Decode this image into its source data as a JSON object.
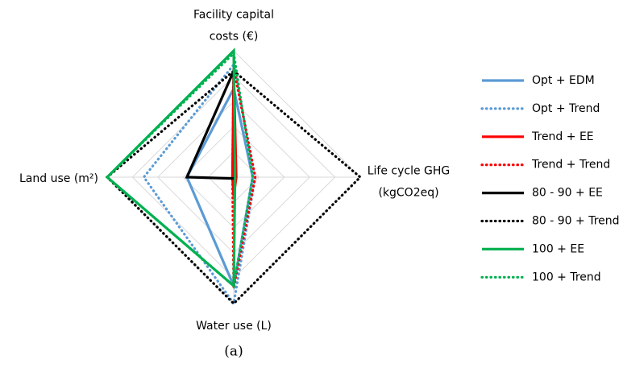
{
  "chart_data": {
    "type": "radar",
    "caption": "(a)",
    "categories": [
      "Facility capital costs (€)",
      "Life cycle GHG (kgCO2eq)",
      "Water use (L)",
      "Land use (m²)"
    ],
    "rlim": [
      0,
      1
    ],
    "rticks": [
      0.2,
      0.4,
      0.6,
      0.8,
      1
    ],
    "grid": true,
    "legend": "right",
    "series": [
      {
        "name": "Opt + EDM",
        "color": "#5b9bd5",
        "style": "solid",
        "values": [
          0.7,
          0.15,
          0.86,
          0.37
        ]
      },
      {
        "name": "Opt + Trend",
        "color": "#5b9bd5",
        "style": "dotted",
        "values": [
          0.89,
          0.17,
          1.0,
          0.71
        ]
      },
      {
        "name": "Trend + EE",
        "color": "#ff0000",
        "style": "solid",
        "values": [
          0.84,
          0.02,
          0.15,
          0.01
        ]
      },
      {
        "name": "Trend + Trend",
        "color": "#ff0000",
        "style": "dotted",
        "values": [
          0.86,
          0.17,
          0.88,
          0.01
        ]
      },
      {
        "name": "80 - 90 + EE",
        "color": "#000000",
        "style": "solid",
        "values": [
          0.84,
          0.01,
          0.01,
          0.37
        ]
      },
      {
        "name": "80 - 90 + Trend",
        "color": "#000000",
        "style": "dotted",
        "values": [
          0.84,
          1.0,
          1.0,
          1.0
        ]
      },
      {
        "name": "100 + EE",
        "color": "#00b050",
        "style": "solid",
        "values": [
          1.0,
          0.01,
          0.86,
          1.0
        ]
      },
      {
        "name": "100 + Trend",
        "color": "#00b050",
        "style": "dotted",
        "values": [
          0.98,
          0.15,
          0.86,
          1.0
        ]
      }
    ]
  }
}
